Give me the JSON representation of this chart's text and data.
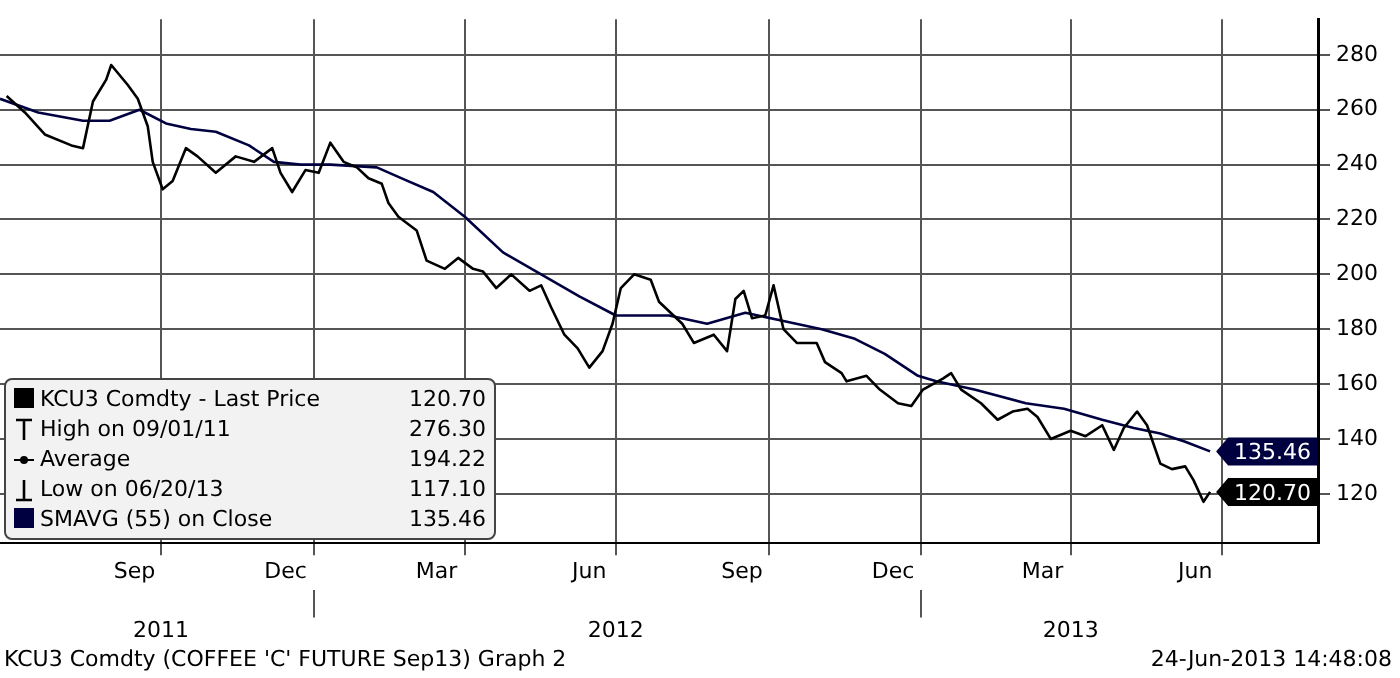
{
  "chart_data": {
    "type": "line",
    "xlim": [
      "2011-06-26",
      "2013-08-28"
    ],
    "xticks": [
      {
        "value": "2011-09-15",
        "label": "Sep"
      },
      {
        "value": "2011-10-01",
        "label": null
      },
      {
        "value": "2011-12-15",
        "label": "Dec"
      },
      {
        "value": "2012-01-01",
        "label": null
      },
      {
        "value": "2012-03-15",
        "label": "Mar"
      },
      {
        "value": "2012-04-01",
        "label": null
      },
      {
        "value": "2012-06-15",
        "label": "Jun"
      },
      {
        "value": "2012-07-01",
        "label": null
      },
      {
        "value": "2012-09-15",
        "label": "Sep"
      },
      {
        "value": "2012-10-01",
        "label": null
      },
      {
        "value": "2012-12-15",
        "label": "Dec"
      },
      {
        "value": "2013-01-01",
        "label": null
      },
      {
        "value": "2013-03-15",
        "label": "Mar"
      },
      {
        "value": "2013-04-01",
        "label": null
      },
      {
        "value": "2013-06-15",
        "label": "Jun"
      },
      {
        "value": "2013-07-01",
        "label": null
      }
    ],
    "x2lim": [
      "2011-06-26",
      "2013-08-28"
    ],
    "x2ticks": [
      {
        "value": "2011-10-01",
        "label": "2011"
      },
      {
        "value": "2012-01-01",
        "label": null
      },
      {
        "value": "2012-07-01",
        "label": "2012"
      },
      {
        "value": "2013-01-01",
        "label": null
      },
      {
        "value": "2013-04-01",
        "label": "2013"
      }
    ],
    "ylim": [
      102,
      293
    ],
    "yticks": [
      120,
      140,
      160,
      180,
      200,
      220,
      240,
      260,
      280
    ],
    "grid": true,
    "legend": "bottom left",
    "marker": "none",
    "line_style": "solid",
    "series": [
      {
        "name": "KCU3 Comdty - Last Price",
        "color": "#000000",
        "x": [
          "2011-06-30",
          "2011-07-11",
          "2011-07-23",
          "2011-08-08",
          "2011-08-15",
          "2011-08-21",
          "2011-08-29",
          "2011-09-01",
          "2011-09-11",
          "2011-09-17",
          "2011-09-23",
          "2011-09-26",
          "2011-10-02",
          "2011-10-08",
          "2011-10-16",
          "2011-10-23",
          "2011-11-03",
          "2011-11-15",
          "2011-11-26",
          "2011-12-07",
          "2011-12-12",
          "2011-12-19",
          "2011-12-27",
          "2012-01-04",
          "2012-01-11",
          "2012-01-19",
          "2012-01-27",
          "2012-02-03",
          "2012-02-11",
          "2012-02-15",
          "2012-02-21",
          "2012-03-03",
          "2012-03-09",
          "2012-03-20",
          "2012-03-28",
          "2012-04-06",
          "2012-04-12",
          "2012-04-20",
          "2012-04-29",
          "2012-05-10",
          "2012-05-17",
          "2012-05-23",
          "2012-05-31",
          "2012-06-08",
          "2012-06-15",
          "2012-06-23",
          "2012-06-29",
          "2012-07-04",
          "2012-07-12",
          "2012-07-22",
          "2012-07-27",
          "2012-08-10",
          "2012-08-17",
          "2012-08-29",
          "2012-09-06",
          "2012-09-11",
          "2012-09-16",
          "2012-09-21",
          "2012-09-29",
          "2012-10-04",
          "2012-10-10",
          "2012-10-18",
          "2012-10-30",
          "2012-11-04",
          "2012-11-14",
          "2012-11-17",
          "2012-11-29",
          "2012-12-07",
          "2012-12-18",
          "2012-12-26",
          "2013-01-02",
          "2013-01-14",
          "2013-01-19",
          "2013-01-25",
          "2013-02-06",
          "2013-02-16",
          "2013-02-25",
          "2013-03-06",
          "2013-03-12",
          "2013-03-20",
          "2013-04-01",
          "2013-04-10",
          "2013-04-20",
          "2013-04-27",
          "2013-05-03",
          "2013-05-11",
          "2013-05-17",
          "2013-05-25",
          "2013-06-01",
          "2013-06-09",
          "2013-06-14",
          "2013-06-20",
          "2013-06-24"
        ],
        "values": [
          265,
          259,
          251,
          247,
          246,
          263,
          271,
          276.3,
          269,
          264,
          254,
          241,
          231,
          234,
          246,
          243,
          237,
          243,
          241,
          246,
          237,
          230,
          238,
          237,
          248,
          241,
          239,
          235,
          233,
          226,
          221,
          216,
          205,
          202,
          206,
          202,
          201,
          195,
          200,
          194,
          196,
          188,
          178,
          173,
          166,
          172,
          182,
          195,
          200,
          198,
          190,
          182,
          175,
          178,
          172,
          191,
          194,
          184,
          185,
          196,
          180,
          175,
          175,
          168,
          164,
          161,
          163,
          158,
          153,
          152,
          158,
          162,
          164,
          158,
          153,
          147,
          150,
          151,
          148,
          140,
          143,
          141,
          145,
          136,
          144,
          150,
          145,
          131,
          129,
          130,
          125,
          117.1,
          120.7
        ],
        "value_labels": [
          null,
          null,
          null,
          null,
          null,
          null,
          null,
          null,
          null,
          null,
          null,
          null,
          null,
          null,
          null,
          null,
          null,
          null,
          null,
          null,
          null,
          null,
          null,
          null,
          null,
          null,
          null,
          null,
          null,
          null,
          null,
          null,
          null,
          null,
          null,
          null,
          null,
          null,
          null,
          null,
          null,
          null,
          null,
          null,
          null,
          null,
          null,
          null,
          null,
          null,
          null,
          null,
          null,
          null,
          null,
          null,
          null,
          null,
          null,
          null,
          null,
          null,
          null,
          null,
          null,
          null,
          null,
          null,
          null,
          null,
          null,
          null,
          null,
          null,
          null,
          null,
          null,
          null,
          null,
          null,
          null,
          null,
          null,
          null,
          null,
          null,
          null,
          null,
          null,
          null,
          null,
          null,
          "120.70"
        ]
      },
      {
        "name": "SMAVG (55) on Close",
        "color": "#000040",
        "x": [
          "2011-06-26",
          "2011-07-19",
          "2011-08-15",
          "2011-08-31",
          "2011-09-18",
          "2011-10-04",
          "2011-10-19",
          "2011-11-03",
          "2011-11-23",
          "2011-12-08",
          "2011-12-24",
          "2012-01-11",
          "2012-02-08",
          "2012-02-23",
          "2012-03-13",
          "2012-04-01",
          "2012-04-24",
          "2012-05-17",
          "2012-06-09",
          "2012-07-01",
          "2012-08-02",
          "2012-08-25",
          "2012-09-17",
          "2012-10-10",
          "2012-11-02",
          "2012-11-22",
          "2012-12-10",
          "2012-12-30",
          "2013-01-10",
          "2013-02-02",
          "2013-03-05",
          "2013-03-28",
          "2013-04-20",
          "2013-05-09",
          "2013-05-25",
          "2013-06-09",
          "2013-06-24"
        ],
        "values": [
          264,
          259,
          256,
          256,
          260,
          255,
          253,
          252,
          247,
          241,
          240,
          240,
          239,
          235,
          230,
          221,
          208,
          200,
          192,
          185,
          185,
          182,
          186,
          183,
          180,
          176.5,
          171,
          163,
          161,
          158,
          153,
          151,
          147,
          144,
          142,
          139,
          135.46
        ],
        "value_labels": [
          null,
          null,
          null,
          null,
          null,
          null,
          null,
          null,
          null,
          null,
          null,
          null,
          null,
          null,
          null,
          null,
          null,
          null,
          null,
          null,
          null,
          null,
          null,
          null,
          null,
          null,
          null,
          null,
          null,
          null,
          null,
          null,
          null,
          null,
          null,
          null,
          "135.46"
        ]
      }
    ],
    "annotations": [
      "High on 09/01/11 276.30",
      "Average 194.22",
      "Low on 06/20/13 117.10",
      "KCU3 Comdty (COFFEE 'C' FUTURE Sep13) Graph 2",
      "24-Jun-2013 14:48:08"
    ]
  }
}
